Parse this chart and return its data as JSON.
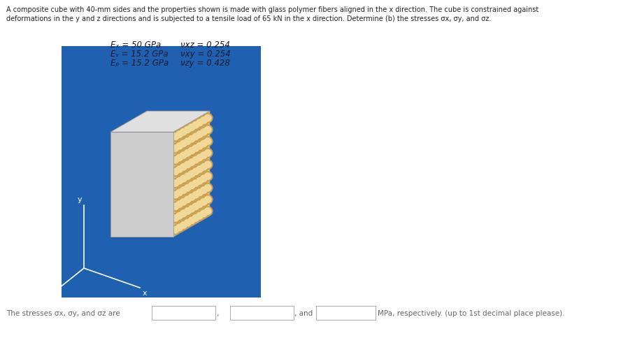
{
  "title_line1": "A composite cube with 40-mm sides and the properties shown is made with glass polymer fibers aligned in the x direction. The cube is constrained against",
  "title_line2": "deformations in the y and z directions and is subjected to a tensile load of 65 kN in the x direction. Determine (b) the stresses σx, σy, and σz.",
  "props_left": [
    "Eₓ = 50 GPa",
    "Eᵧ = 15.2 GPa",
    "Eᵨ = 15.2 GPa"
  ],
  "props_right": [
    "νxz = 0.254",
    "νxy = 0.254",
    "νzy = 0.428"
  ],
  "bottom_text": "The stresses σx, σy, and σz are",
  "bottom_end": "MPa, respectively. (up to 1st decimal place please).",
  "bg_color": "#2060b0",
  "cube_top_color": "#e0e0e0",
  "cube_left_color": "#cccccc",
  "fiber_bg_color": "#e8c878",
  "fiber_ring_color": "#c8a050",
  "fiber_hole_color": "#f0d898",
  "axis_color": "#ffffff",
  "text_color_props": "#1a1a2a",
  "figure_bg": "#ffffff",
  "box_border": "#b0b0b0",
  "bottom_text_color": "#666666",
  "title_color": "#222222"
}
